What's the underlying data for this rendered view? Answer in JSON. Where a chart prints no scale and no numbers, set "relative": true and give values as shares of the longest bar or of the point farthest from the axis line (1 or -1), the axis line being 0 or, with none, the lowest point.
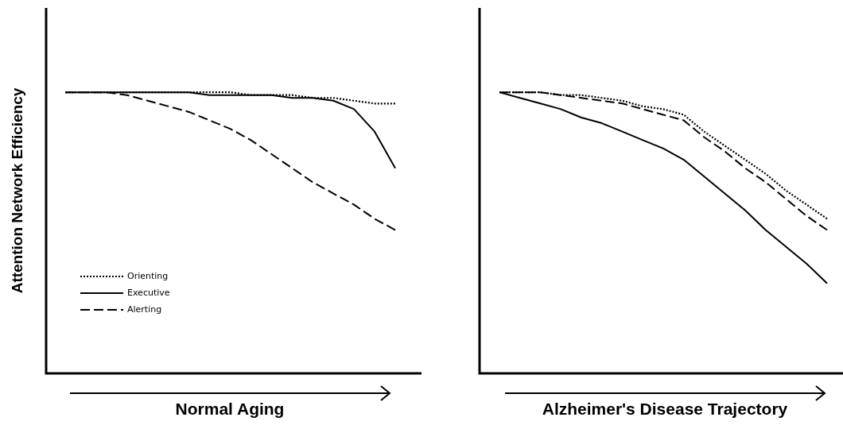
{
  "chart_data": [
    {
      "type": "line",
      "relative": true,
      "ylabel": "Attention Network Efficiency",
      "xlabel": "Normal Aging",
      "legend": "bottom left",
      "categories": [
        null,
        null,
        null,
        null,
        null,
        null,
        null,
        null,
        null,
        null,
        null,
        null,
        null,
        null,
        null,
        null,
        null
      ],
      "series": [
        {
          "name": "Orienting",
          "color": "#000000",
          "line_style": "dotted",
          "values": [
            1,
            1,
            1,
            1,
            1,
            1,
            1,
            1,
            1,
            0.99,
            0.99,
            0.99,
            0.98,
            0.98,
            0.97,
            0.96,
            0.96
          ]
        },
        {
          "name": "Executive",
          "color": "#000000",
          "line_style": "solid",
          "values": [
            1,
            1,
            1,
            1,
            1,
            1,
            1,
            0.99,
            0.99,
            0.99,
            0.99,
            0.98,
            0.98,
            0.97,
            0.94,
            0.86,
            0.73
          ]
        },
        {
          "name": "Alerting",
          "color": "#000000",
          "line_style": "dashed",
          "values": [
            1,
            1,
            1,
            0.99,
            0.97,
            0.95,
            0.93,
            0.9,
            0.87,
            0.83,
            0.78,
            0.73,
            0.68,
            0.64,
            0.6,
            0.55,
            0.51
          ]
        }
      ]
    },
    {
      "type": "line",
      "relative": true,
      "xlabel": "Alzheimer's Disease Trajectory",
      "categories": [
        null,
        null,
        null,
        null,
        null,
        null,
        null,
        null,
        null,
        null,
        null,
        null,
        null,
        null,
        null,
        null,
        null
      ],
      "series": [
        {
          "color": "#000000",
          "line_style": "dotted",
          "values": [
            1,
            1,
            1,
            0.99,
            0.99,
            0.98,
            0.97,
            0.95,
            0.94,
            0.92,
            0.86,
            0.81,
            0.76,
            0.71,
            0.65,
            0.6,
            0.55
          ]
        },
        {
          "color": "#000000",
          "line_style": "solid",
          "values": [
            1,
            0.98,
            0.96,
            0.94,
            0.91,
            0.89,
            0.86,
            0.83,
            0.8,
            0.76,
            0.7,
            0.64,
            0.58,
            0.51,
            0.45,
            0.39,
            0.32
          ]
        },
        {
          "color": "#000000",
          "line_style": "dashed",
          "values": [
            1,
            1,
            1,
            0.99,
            0.98,
            0.97,
            0.96,
            0.94,
            0.92,
            0.9,
            0.84,
            0.79,
            0.73,
            0.68,
            0.62,
            0.56,
            0.51
          ]
        }
      ]
    }
  ]
}
